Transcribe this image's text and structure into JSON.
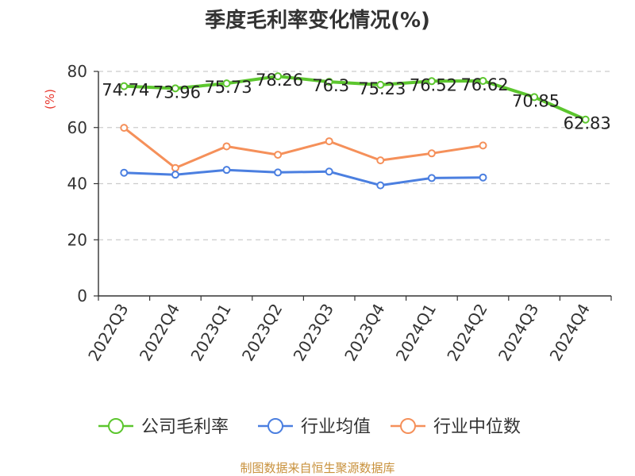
{
  "chart_data": {
    "type": "line",
    "title": "季度毛利率变化情况(%)",
    "ylabel": "(%)",
    "xlabel": "",
    "ylim": [
      0,
      80
    ],
    "yticks": [
      0,
      20,
      40,
      60,
      80
    ],
    "grid": "horizontal dashed",
    "legend_position": "bottom",
    "categories": [
      "2022Q3",
      "2022Q4",
      "2023Q1",
      "2023Q2",
      "2023Q3",
      "2023Q4",
      "2024Q1",
      "2024Q2",
      "2024Q3",
      "2024Q4"
    ],
    "series": [
      {
        "name": "公司毛利率",
        "color": "#5cc62e",
        "labels": [
          "74.74",
          "73.96",
          "75.73",
          "78.26",
          "76.3",
          "75.23",
          "76.52",
          "76.62",
          "70.85",
          "62.83"
        ],
        "values": [
          74.74,
          73.96,
          75.73,
          78.26,
          76.3,
          75.23,
          76.52,
          76.62,
          70.85,
          62.83
        ]
      },
      {
        "name": "行业均值",
        "color": "#4b7fe0",
        "values": [
          43.9,
          43.2,
          44.9,
          44.0,
          44.3,
          39.4,
          42.0,
          42.2,
          null,
          null
        ]
      },
      {
        "name": "行业中位数",
        "color": "#f5905a",
        "values": [
          59.9,
          45.6,
          53.3,
          50.3,
          55.1,
          48.3,
          50.8,
          53.6,
          null,
          null
        ]
      }
    ]
  },
  "source": "制图数据来自恒生聚源数据库"
}
